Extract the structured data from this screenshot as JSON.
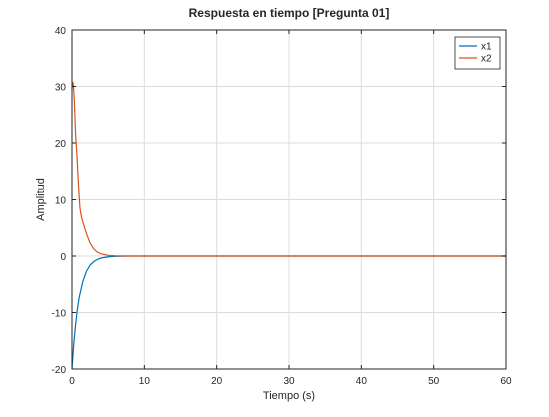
{
  "chart_data": {
    "type": "line",
    "title": "Respuesta en tiempo [Pregunta 01]",
    "xlabel": "Tiempo (s)",
    "ylabel": "Amplitud",
    "xlim": [
      0,
      60
    ],
    "ylim": [
      -20,
      40
    ],
    "xticks": [
      0,
      10,
      20,
      30,
      40,
      50,
      60
    ],
    "yticks": [
      -20,
      -10,
      0,
      10,
      20,
      30,
      40
    ],
    "grid": true,
    "legend_position": "top-right",
    "series": [
      {
        "name": "x1",
        "color": "#0072bd",
        "x": [
          0,
          0.25,
          0.5,
          0.75,
          1,
          1.5,
          2,
          2.5,
          3,
          3.5,
          4,
          5,
          6,
          7,
          8,
          10,
          15,
          20,
          30,
          40,
          50,
          60
        ],
        "y": [
          -20,
          -15.5,
          -12.1,
          -9.4,
          -7.3,
          -4.5,
          -2.7,
          -1.6,
          -1.0,
          -0.6,
          -0.35,
          -0.13,
          -0.05,
          -0.02,
          0,
          0,
          0,
          0,
          0,
          0,
          0,
          0
        ]
      },
      {
        "name": "x2",
        "color": "#d95319",
        "x": [
          0,
          0.1,
          0.2,
          0.3,
          0.4,
          0.5,
          0.7,
          0.9,
          1.1,
          1.3,
          1.5,
          2,
          2.5,
          3,
          3.5,
          4,
          5,
          6,
          8,
          10,
          20,
          30,
          40,
          50,
          60
        ],
        "y": [
          29.5,
          30.8,
          30.2,
          28.0,
          25.0,
          21.5,
          17.5,
          12.5,
          8.5,
          7.0,
          6.0,
          4.0,
          2.3,
          1.3,
          0.7,
          0.4,
          0.12,
          0.04,
          0,
          0,
          0,
          0,
          0,
          0,
          0
        ]
      }
    ]
  }
}
